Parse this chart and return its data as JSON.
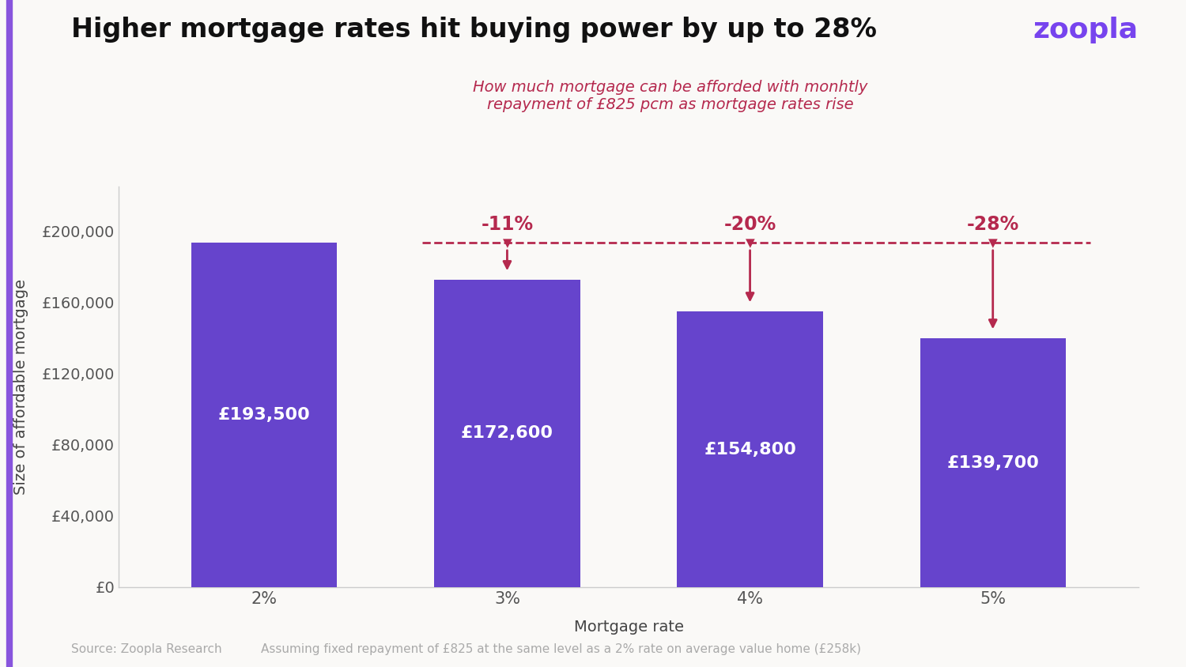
{
  "title": "Higher mortgage rates hit buying power by up to 28%",
  "subtitle_line1": "How much mortgage can be afforded with monhtly",
  "subtitle_line2": "repayment of £825 pcm as mortgage rates rise",
  "xlabel": "Mortgage rate",
  "ylabel": "Size of affordable mortgage",
  "categories": [
    "2%",
    "3%",
    "4%",
    "5%"
  ],
  "values": [
    193500,
    172600,
    154800,
    139700
  ],
  "bar_labels": [
    "£193,500",
    "£172,600",
    "£154,800",
    "£139,700"
  ],
  "pct_labels": [
    null,
    "▼-11%",
    "▼-20%",
    "▼-28%"
  ],
  "pct_short": [
    null,
    "-11%",
    "-20%",
    "-28%"
  ],
  "bar_color": "#6644cc",
  "reference_value": 193500,
  "dashed_line_color": "#b5294e",
  "arrow_color": "#b5294e",
  "subtitle_color": "#b5294e",
  "background_color": "#faf9f7",
  "title_color": "#111111",
  "bar_label_color": "#ffffff",
  "ytick_labels": [
    "£0",
    "£40,000",
    "£80,000",
    "£120,000",
    "£160,000",
    "£200,000"
  ],
  "ytick_values": [
    0,
    40000,
    80000,
    120000,
    160000,
    200000
  ],
  "ylim": [
    0,
    225000
  ],
  "zoopla_color": "#7744ee",
  "zoopla_text": "zoopla",
  "footer_left": "Source: Zoopla Research",
  "footer_right": "Assuming fixed repayment of £825 at the same level as a 2% rate on average value home (£258k)",
  "footer_color": "#aaaaaa",
  "spine_color": "#cccccc",
  "title_fontsize": 24,
  "subtitle_fontsize": 14,
  "axis_label_fontsize": 14,
  "tick_fontsize": 14,
  "bar_label_fontsize": 16,
  "pct_label_fontsize": 17,
  "footer_fontsize": 11,
  "zoopla_fontsize": 26
}
